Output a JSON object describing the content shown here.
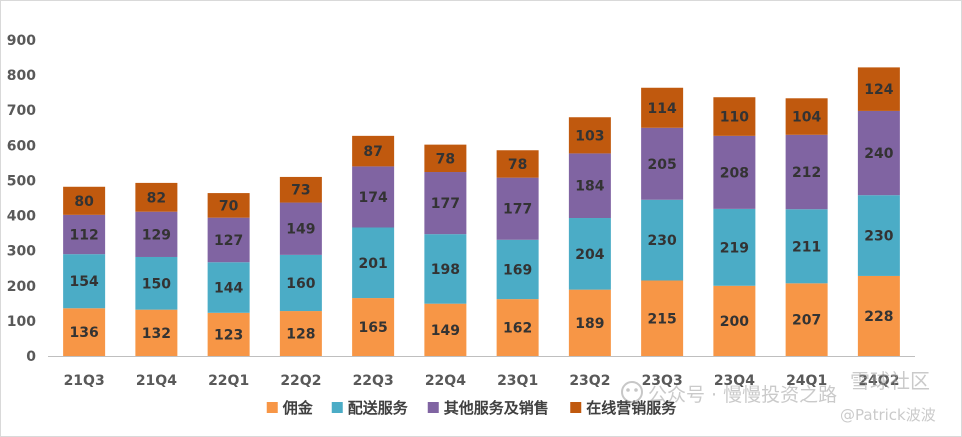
{
  "chart_data": {
    "type": "bar",
    "stacked": true,
    "categories": [
      "21Q3",
      "21Q4",
      "22Q1",
      "22Q2",
      "22Q3",
      "22Q4",
      "23Q1",
      "23Q2",
      "23Q3",
      "23Q4",
      "24Q1",
      "24Q2"
    ],
    "series": [
      {
        "name": "佣金",
        "color": "#F79646",
        "values": [
          136,
          132,
          123,
          128,
          165,
          149,
          162,
          189,
          215,
          200,
          207,
          228
        ]
      },
      {
        "name": "配送服务",
        "color": "#4BACC6",
        "values": [
          154,
          150,
          144,
          160,
          201,
          198,
          169,
          204,
          230,
          219,
          211,
          230
        ]
      },
      {
        "name": "其他服务及销售",
        "color": "#8064A2",
        "values": [
          112,
          129,
          127,
          149,
          174,
          177,
          177,
          184,
          205,
          208,
          212,
          240
        ]
      },
      {
        "name": "在线营销服务",
        "color": "#C0590E",
        "values": [
          80,
          82,
          70,
          73,
          87,
          78,
          78,
          103,
          114,
          110,
          104,
          124
        ]
      }
    ],
    "ylim": [
      0,
      900
    ],
    "yticks": [
      0,
      100,
      200,
      300,
      400,
      500,
      600,
      700,
      800,
      900
    ],
    "grid": false,
    "legend_position": "bottom",
    "xlabel": "",
    "ylabel": ""
  },
  "watermark": {
    "line1": "公众号 · 慢慢投资之路",
    "line2": "@Patrick波波",
    "line3": "雪球社区"
  }
}
